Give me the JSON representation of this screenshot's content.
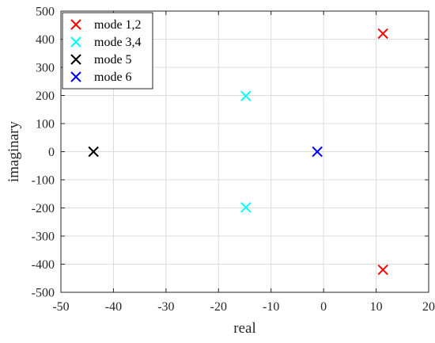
{
  "chart_data": {
    "type": "scatter",
    "title": "",
    "xlabel": "real",
    "ylabel": "imaginary",
    "xlim": [
      -50,
      20
    ],
    "ylim": [
      -500,
      500
    ],
    "x_ticks": [
      -50,
      -40,
      -30,
      -20,
      -10,
      0,
      10,
      20
    ],
    "y_ticks": [
      -500,
      -400,
      -300,
      -200,
      -100,
      0,
      100,
      200,
      300,
      400,
      500
    ],
    "grid": true,
    "legend_position": "top-left",
    "marker": "x",
    "series": [
      {
        "name": "mode 1,2",
        "color": "#ff0000",
        "points": [
          [
            11.3,
            420
          ],
          [
            11.3,
            -420
          ]
        ]
      },
      {
        "name": "mode 3,4",
        "color": "#00ffff",
        "points": [
          [
            -14.8,
            198
          ],
          [
            -14.8,
            -198
          ]
        ]
      },
      {
        "name": "mode 5",
        "color": "#000000",
        "points": [
          [
            -43.8,
            0
          ]
        ]
      },
      {
        "name": "mode 6",
        "color": "#0000ff",
        "points": [
          [
            -1.2,
            0
          ]
        ]
      }
    ]
  }
}
